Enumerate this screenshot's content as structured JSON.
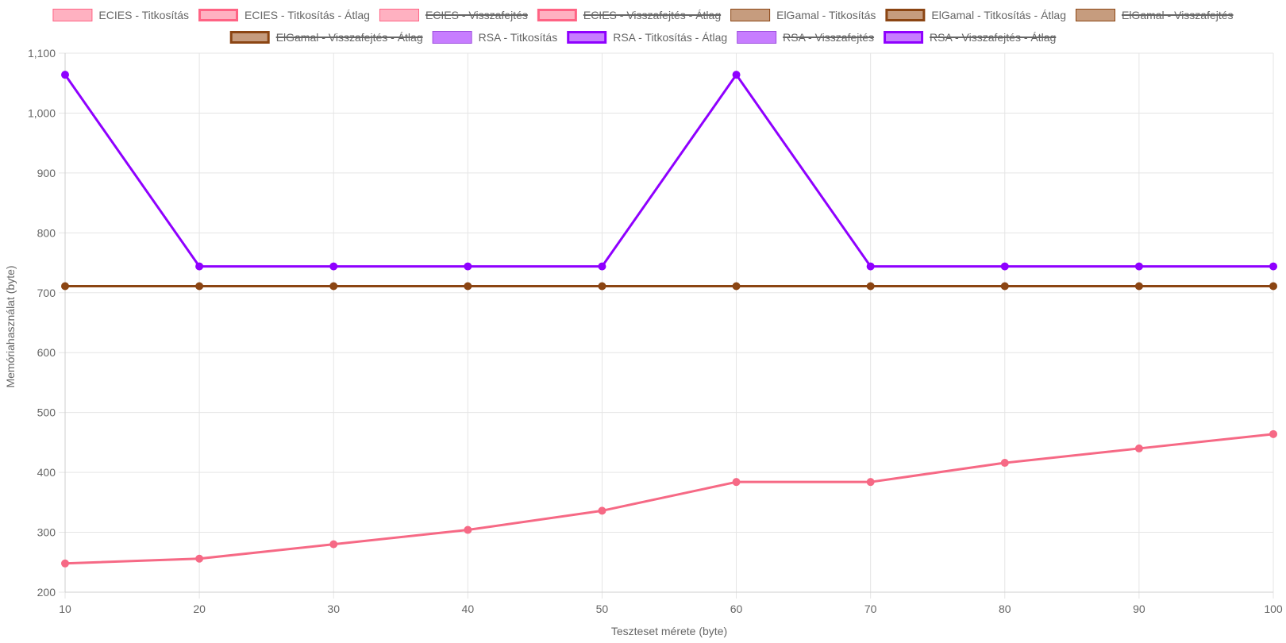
{
  "chart_data": {
    "type": "line",
    "xlabel": "Teszteset mérete (byte)",
    "ylabel": "Memóriahasználat (byte)",
    "ylim": [
      200,
      1100
    ],
    "y_ticks": [
      200,
      300,
      400,
      500,
      600,
      700,
      800,
      900,
      1000,
      1100
    ],
    "y_tick_labels": [
      "200",
      "300",
      "400",
      "500",
      "600",
      "700",
      "800",
      "900",
      "1,000",
      "1,100"
    ],
    "x": [
      10,
      20,
      30,
      40,
      50,
      60,
      70,
      80,
      90,
      100
    ],
    "grid": true,
    "legend_position": "top",
    "legend": [
      {
        "label": "ECIES - Titkosítás",
        "fill": "#ffb1c1",
        "border": "#ff6384",
        "thick": false,
        "hidden": false
      },
      {
        "label": "ECIES - Titkosítás - Átlag",
        "fill": "#ffb1c1",
        "border": "#ff6384",
        "thick": true,
        "hidden": false
      },
      {
        "label": "ECIES - Visszafejtés",
        "fill": "#ffb1c1",
        "border": "#ff6384",
        "thick": false,
        "hidden": true
      },
      {
        "label": "ECIES - Visszafejtés - Átlag",
        "fill": "#ffb1c1",
        "border": "#ff6384",
        "thick": true,
        "hidden": true
      },
      {
        "label": "ElGamal - Titkosítás",
        "fill": "#c69c7e",
        "border": "#8b4513",
        "thick": false,
        "hidden": false
      },
      {
        "label": "ElGamal - Titkosítás - Átlag",
        "fill": "#c69c7e",
        "border": "#8b4513",
        "thick": true,
        "hidden": false
      },
      {
        "label": "ElGamal - Visszafejtés",
        "fill": "#c69c7e",
        "border": "#8b4513",
        "thick": false,
        "hidden": true
      },
      {
        "label": "ElGamal - Visszafejtés - Átlag",
        "fill": "#c69c7e",
        "border": "#8b4513",
        "thick": true,
        "hidden": true
      },
      {
        "label": "RSA - Titkosítás",
        "fill": "#c77dff",
        "border": "#9d4edd",
        "thick": false,
        "hidden": false
      },
      {
        "label": "RSA - Titkosítás - Átlag",
        "fill": "#c77dff",
        "border": "#8f00ff",
        "thick": true,
        "hidden": false
      },
      {
        "label": "RSA - Visszafejtés",
        "fill": "#c77dff",
        "border": "#9d4edd",
        "thick": false,
        "hidden": true
      },
      {
        "label": "RSA - Visszafejtés - Átlag",
        "fill": "#c77dff",
        "border": "#8f00ff",
        "thick": true,
        "hidden": true
      }
    ],
    "series": [
      {
        "name": "ECIES - Titkosítás - Átlag",
        "color": "#f66985",
        "values": [
          248,
          256,
          280,
          304,
          336,
          384,
          384,
          416,
          440,
          464
        ]
      },
      {
        "name": "ElGamal - Titkosítás - Átlag",
        "color": "#8b4513",
        "values": [
          711,
          711,
          711,
          711,
          711,
          711,
          711,
          711,
          711,
          711
        ]
      },
      {
        "name": "RSA - Titkosítás - Átlag",
        "color": "#8f00ff",
        "values": [
          1064,
          744,
          744,
          744,
          744,
          1064,
          744,
          744,
          744,
          744
        ]
      }
    ]
  }
}
